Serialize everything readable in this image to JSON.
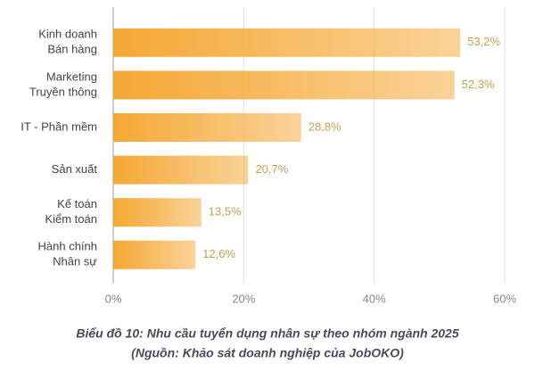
{
  "chart_data": {
    "type": "barh",
    "title": "Biểu đồ 10: Nhu cầu tuyển dụng nhân sự theo nhóm ngành 2025",
    "subtitle": "(Nguồn: Khảo sát doanh nghiệp của JobOKO)",
    "categories": [
      [
        "Kinh doanh",
        "Bán hàng"
      ],
      [
        "Marketing",
        "Truyền thông"
      ],
      [
        "IT - Phần mềm"
      ],
      [
        "Sản xuất"
      ],
      [
        "Kế toán",
        "Kiểm toán"
      ],
      [
        "Hành chính",
        "Nhân sự"
      ]
    ],
    "values": [
      53.2,
      52.3,
      28.8,
      20.7,
      13.5,
      12.6
    ],
    "value_labels": [
      "53,2%",
      "52,3%",
      "28,8%",
      "20,7%",
      "13,5%",
      "12,6%"
    ],
    "color": "#f5a733",
    "xlim": [
      0,
      60
    ],
    "xticks": [
      {
        "value": 0,
        "label": "0%"
      },
      {
        "value": 20,
        "label": "20%"
      },
      {
        "value": 40,
        "label": "40%"
      },
      {
        "value": 60,
        "label": "60%"
      }
    ],
    "grid": true
  }
}
